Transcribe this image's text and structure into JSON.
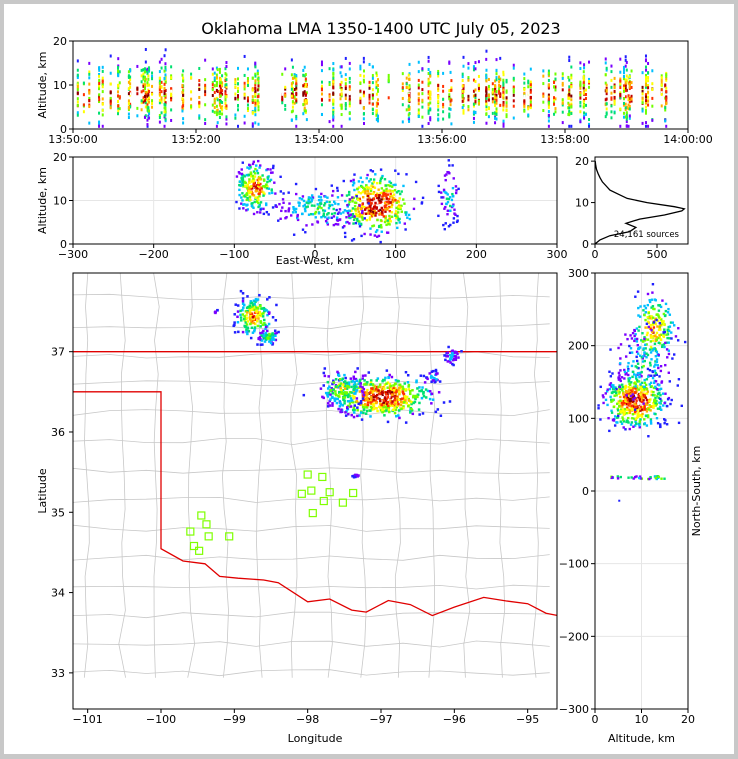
{
  "title": "Oklahoma LMA 1350-1400 UTC July 05, 2023",
  "colors": {
    "state_border": "#e00000",
    "county": "#c8c8c8",
    "grid": "#e6e6e6",
    "station": "#7fff00"
  },
  "density_colormap": [
    "#2020ff",
    "#7a00ff",
    "#00c0ff",
    "#00e070",
    "#70ff00",
    "#ffff00",
    "#ffb000",
    "#ff3000",
    "#c00000",
    "#800000",
    "#ffffff"
  ],
  "chart_data": [
    {
      "type": "scatter",
      "name": "time-height",
      "ylabel": "Altitude, km",
      "xlim": [
        "13:50:00",
        "14:00:00"
      ],
      "ylim": [
        0,
        20
      ],
      "x_ticks": [
        "13:50:00",
        "13:52:00",
        "13:54:00",
        "13:56:00",
        "13:58:00",
        "14:00:00"
      ],
      "y_ticks": [
        0,
        10,
        20
      ],
      "core_altitude_km": 8
    },
    {
      "type": "scatter",
      "name": "east-west-height",
      "xlabel": "East-West, km",
      "ylabel": "Altitude, km",
      "xlim": [
        -300,
        300
      ],
      "ylim": [
        0,
        20
      ],
      "x_ticks": [
        -300,
        -200,
        -100,
        0,
        100,
        200,
        300
      ],
      "y_ticks": [
        0,
        10,
        20
      ],
      "clusters": [
        {
          "x": 75,
          "z": 9,
          "intensity": "max"
        },
        {
          "x": -75,
          "z": 13,
          "intensity": "high"
        },
        {
          "x": 5,
          "z": 8,
          "intensity": "medium"
        },
        {
          "x": 165,
          "z": 11,
          "intensity": "low"
        }
      ]
    },
    {
      "type": "line",
      "name": "altitude-histogram",
      "annotation": "24,161 sources",
      "xlim": [
        0,
        750
      ],
      "ylim": [
        0,
        21
      ],
      "x_ticks": [
        0,
        500
      ],
      "y_ticks": [
        0,
        10,
        20
      ],
      "profile": [
        {
          "z": 0,
          "n": 0
        },
        {
          "z": 1,
          "n": 40
        },
        {
          "z": 2,
          "n": 120
        },
        {
          "z": 3,
          "n": 280
        },
        {
          "z": 4,
          "n": 330
        },
        {
          "z": 5,
          "n": 250
        },
        {
          "z": 6,
          "n": 360
        },
        {
          "z": 7,
          "n": 560
        },
        {
          "z": 8,
          "n": 700
        },
        {
          "z": 8.5,
          "n": 720
        },
        {
          "z": 9,
          "n": 640
        },
        {
          "z": 10,
          "n": 420
        },
        {
          "z": 11,
          "n": 260
        },
        {
          "z": 12,
          "n": 190
        },
        {
          "z": 13,
          "n": 120
        },
        {
          "z": 14,
          "n": 90
        },
        {
          "z": 15,
          "n": 60
        },
        {
          "z": 16,
          "n": 40
        },
        {
          "z": 17,
          "n": 25
        },
        {
          "z": 18,
          "n": 12
        },
        {
          "z": 19,
          "n": 6
        },
        {
          "z": 20,
          "n": 2
        }
      ]
    },
    {
      "type": "scatter",
      "name": "plan-view",
      "xlabel": "Longitude",
      "ylabel": "Latitude",
      "xlim": [
        -101.2,
        -94.6
      ],
      "ylim": [
        32.55,
        37.98
      ],
      "x_ticks": [
        -101,
        -100,
        -99,
        -98,
        -97,
        -96,
        -95
      ],
      "y_ticks": [
        33,
        34,
        35,
        36,
        37
      ],
      "storm_core": {
        "lon": -97.0,
        "lat": 36.45
      },
      "stations": [
        {
          "lon": -99.45,
          "lat": 34.96
        },
        {
          "lon": -99.38,
          "lat": 34.85
        },
        {
          "lon": -99.6,
          "lat": 34.76
        },
        {
          "lon": -99.35,
          "lat": 34.7
        },
        {
          "lon": -99.07,
          "lat": 34.7
        },
        {
          "lon": -99.55,
          "lat": 34.58
        },
        {
          "lon": -99.48,
          "lat": 34.52
        },
        {
          "lon": -98.0,
          "lat": 35.47
        },
        {
          "lon": -97.8,
          "lat": 35.44
        },
        {
          "lon": -98.08,
          "lat": 35.23
        },
        {
          "lon": -97.95,
          "lat": 35.27
        },
        {
          "lon": -97.7,
          "lat": 35.25
        },
        {
          "lon": -97.78,
          "lat": 35.14
        },
        {
          "lon": -97.52,
          "lat": 35.12
        },
        {
          "lon": -97.38,
          "lat": 35.24
        },
        {
          "lon": -97.93,
          "lat": 34.99
        }
      ]
    },
    {
      "type": "scatter",
      "name": "north-south-height",
      "xlabel": "Altitude, km",
      "ylabel": "North-South, km",
      "xlim": [
        0,
        20
      ],
      "ylim": [
        -300,
        300
      ],
      "x_ticks": [
        0,
        10,
        20
      ],
      "y_ticks": [
        -300,
        -200,
        -100,
        0,
        100,
        200,
        300
      ]
    }
  ]
}
